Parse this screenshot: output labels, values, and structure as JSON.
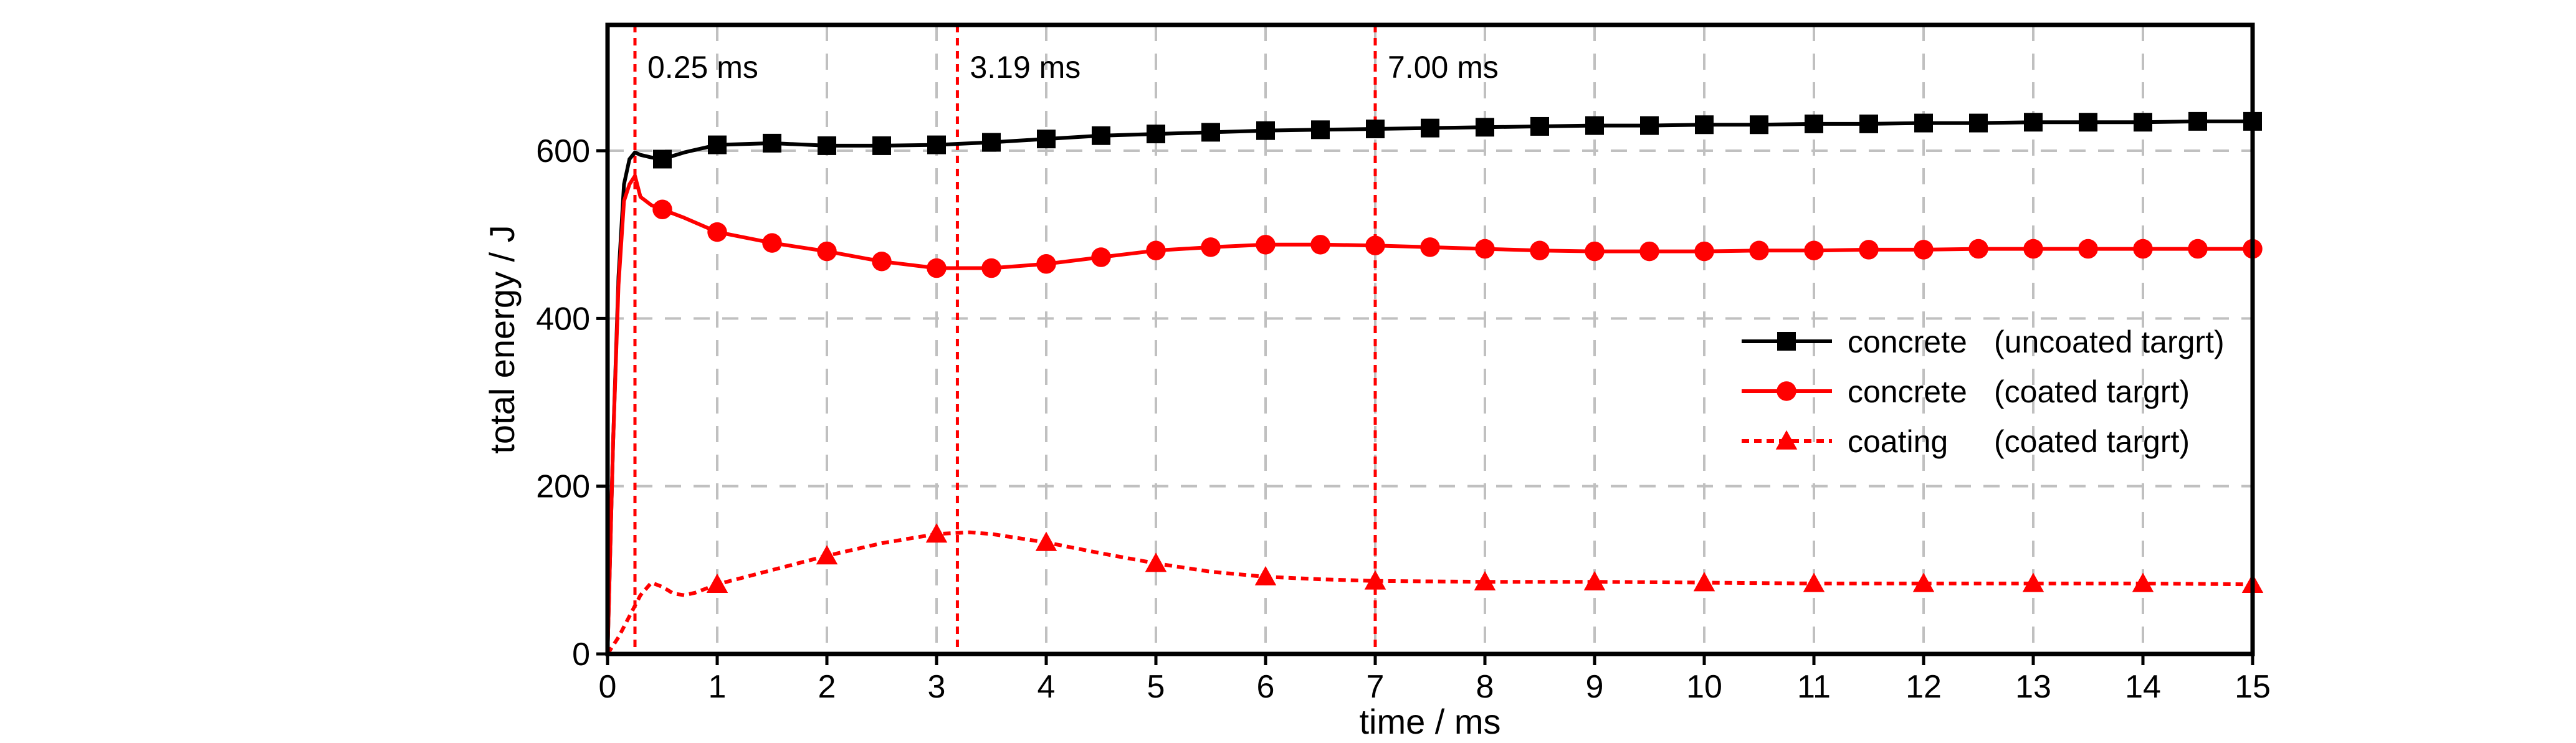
{
  "chart_data": {
    "type": "line",
    "title": "",
    "xlabel": "time / ms",
    "ylabel": "total energy / J",
    "xlim": [
      0,
      15
    ],
    "ylim": [
      0,
      750
    ],
    "xticks": [
      0,
      1,
      2,
      3,
      4,
      5,
      6,
      7,
      8,
      9,
      10,
      11,
      12,
      13,
      14,
      15
    ],
    "yticks": [
      0,
      200,
      400,
      600
    ],
    "grid": true,
    "legend_position": "right",
    "annotations": [
      {
        "x": 0.25,
        "label": "0.25 ms"
      },
      {
        "x": 3.19,
        "label": "3.19 ms"
      },
      {
        "x": 7.0,
        "label": "7.00 ms"
      }
    ],
    "series": [
      {
        "name": "concrete",
        "name_detail": "(uncoated targrt)",
        "color": "#000000",
        "marker": "square",
        "dash": "solid",
        "x": [
          0,
          0.05,
          0.1,
          0.15,
          0.2,
          0.25,
          0.3,
          0.4,
          0.5,
          0.7,
          1,
          1.5,
          2,
          2.5,
          3,
          3.5,
          4,
          4.5,
          5,
          5.5,
          6,
          6.5,
          7,
          7.5,
          8,
          8.5,
          9,
          9.5,
          10,
          10.5,
          11,
          11.5,
          12,
          12.5,
          13,
          13.5,
          14,
          14.5,
          15
        ],
        "y": [
          0,
          250,
          450,
          560,
          590,
          598,
          595,
          592,
          590,
          598,
          607,
          609,
          606,
          606,
          607,
          610,
          614,
          618,
          620,
          622,
          624,
          625,
          626,
          627,
          628,
          629,
          630,
          630,
          631,
          631,
          632,
          632,
          633,
          633,
          634,
          634,
          634,
          635,
          635
        ],
        "marker_x": [
          0.5,
          1,
          1.5,
          2,
          2.5,
          3,
          3.5,
          4,
          4.5,
          5,
          5.5,
          6,
          6.5,
          7,
          7.5,
          8,
          8.5,
          9,
          9.5,
          10,
          10.5,
          11,
          11.5,
          12,
          12.5,
          13,
          13.5,
          14,
          14.5,
          15
        ]
      },
      {
        "name": "concrete",
        "name_detail": "(coated targrt)",
        "color": "#ff0000",
        "marker": "circle",
        "dash": "solid",
        "x": [
          0,
          0.05,
          0.1,
          0.15,
          0.2,
          0.25,
          0.3,
          0.4,
          0.5,
          0.7,
          1,
          1.5,
          2,
          2.5,
          3,
          3.5,
          4,
          4.5,
          5,
          5.5,
          6,
          6.5,
          7,
          7.5,
          8,
          8.5,
          9,
          9.5,
          10,
          10.5,
          11,
          11.5,
          12,
          12.5,
          13,
          13.5,
          14,
          14.5,
          15
        ],
        "y": [
          0,
          250,
          440,
          540,
          560,
          570,
          545,
          535,
          530,
          520,
          503,
          490,
          480,
          468,
          460,
          460,
          465,
          473,
          481,
          485,
          488,
          488,
          487,
          485,
          483,
          481,
          480,
          480,
          480,
          481,
          481,
          482,
          482,
          483,
          483,
          483,
          483,
          483,
          483
        ],
        "marker_x": [
          0.5,
          1,
          1.5,
          2,
          2.5,
          3,
          3.5,
          4,
          4.5,
          5,
          5.5,
          6,
          6.5,
          7,
          7.5,
          8,
          8.5,
          9,
          9.5,
          10,
          10.5,
          11,
          11.5,
          12,
          12.5,
          13,
          13.5,
          14,
          14.5,
          15
        ]
      },
      {
        "name": "coating",
        "name_detail": "(coated targrt)",
        "color": "#ff0000",
        "marker": "triangle",
        "dash": "dashed",
        "x": [
          0,
          0.1,
          0.2,
          0.3,
          0.4,
          0.5,
          0.6,
          0.7,
          0.8,
          1,
          1.5,
          2,
          2.5,
          3,
          3.3,
          3.5,
          4,
          4.5,
          5,
          5.5,
          6,
          6.5,
          7,
          8,
          9,
          10,
          11,
          12,
          13,
          14,
          15
        ],
        "y": [
          0,
          20,
          45,
          70,
          85,
          80,
          72,
          70,
          73,
          83,
          100,
          117,
          132,
          143,
          145,
          143,
          133,
          120,
          108,
          98,
          92,
          89,
          87,
          86,
          86,
          85,
          84,
          84,
          84,
          84,
          83
        ],
        "marker_x": [
          1,
          2,
          3,
          4,
          5,
          6,
          7,
          8,
          9,
          10,
          11,
          12,
          13,
          14,
          15
        ]
      }
    ]
  }
}
